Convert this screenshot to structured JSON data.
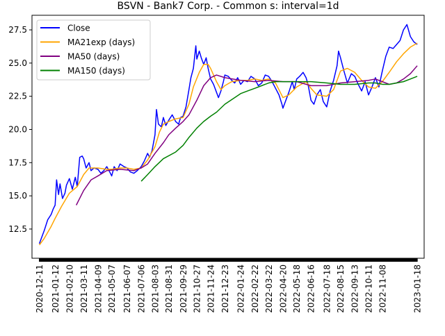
{
  "chart_data": {
    "type": "line",
    "title": "BSVN - Bank7 Corp. - Common s: interval=1d",
    "xlabel": "",
    "ylabel": "",
    "ylim": [
      10.3,
      28.6
    ],
    "xlim": [
      "2020-11-26",
      "2023-02-01"
    ],
    "grid": false,
    "legend_position": "top-left",
    "y_ticks": [
      "12.5",
      "15.0",
      "17.5",
      "20.0",
      "22.5",
      "25.0",
      "27.5"
    ],
    "x_ticks": [
      "2020-12-11",
      "2021-01-12",
      "2021-02-10",
      "2021-03-11",
      "2021-04-09",
      "2021-05-07",
      "2021-06-07",
      "2021-07-06",
      "2021-08-03",
      "2021-08-31",
      "2021-09-29",
      "2021-10-27",
      "2021-11-24",
      "2021-12-23",
      "2022-01-24",
      "2022-02-22",
      "2022-03-22",
      "2022-04-20",
      "2022-05-18",
      "2022-06-16",
      "2022-07-18",
      "2022-08-15",
      "2022-09-13",
      "2022-10-11",
      "2022-11-08",
      "2023-01-18"
    ],
    "series": [
      {
        "name": "Close",
        "color": "#0000ff",
        "points": [
          [
            "2020-12-11",
            11.4
          ],
          [
            "2020-12-16",
            11.9
          ],
          [
            "2020-12-21",
            12.4
          ],
          [
            "2020-12-28",
            13.2
          ],
          [
            "2021-01-04",
            13.6
          ],
          [
            "2021-01-08",
            14.0
          ],
          [
            "2021-01-12",
            14.3
          ],
          [
            "2021-01-15",
            16.2
          ],
          [
            "2021-01-19",
            15.1
          ],
          [
            "2021-01-22",
            15.9
          ],
          [
            "2021-01-27",
            14.8
          ],
          [
            "2021-02-01",
            15.2
          ],
          [
            "2021-02-04",
            15.8
          ],
          [
            "2021-02-10",
            16.3
          ],
          [
            "2021-02-16",
            15.5
          ],
          [
            "2021-02-22",
            16.4
          ],
          [
            "2021-02-26",
            15.7
          ],
          [
            "2021-03-03",
            17.9
          ],
          [
            "2021-03-08",
            18.0
          ],
          [
            "2021-03-11",
            17.8
          ],
          [
            "2021-03-16",
            17.1
          ],
          [
            "2021-03-22",
            17.5
          ],
          [
            "2021-03-26",
            16.9
          ],
          [
            "2021-04-01",
            17.1
          ],
          [
            "2021-04-09",
            17.0
          ],
          [
            "2021-04-15",
            16.7
          ],
          [
            "2021-04-21",
            16.9
          ],
          [
            "2021-04-27",
            17.2
          ],
          [
            "2021-05-03",
            16.8
          ],
          [
            "2021-05-07",
            16.5
          ],
          [
            "2021-05-12",
            17.2
          ],
          [
            "2021-05-18",
            16.9
          ],
          [
            "2021-05-24",
            17.4
          ],
          [
            "2021-06-01",
            17.2
          ],
          [
            "2021-06-07",
            17.1
          ],
          [
            "2021-06-14",
            16.8
          ],
          [
            "2021-06-21",
            16.7
          ],
          [
            "2021-06-28",
            16.9
          ],
          [
            "2021-07-06",
            17.2
          ],
          [
            "2021-07-12",
            17.6
          ],
          [
            "2021-07-19",
            18.2
          ],
          [
            "2021-07-23",
            17.9
          ],
          [
            "2021-07-28",
            18.4
          ],
          [
            "2021-08-03",
            19.6
          ],
          [
            "2021-08-06",
            21.5
          ],
          [
            "2021-08-10",
            20.4
          ],
          [
            "2021-08-16",
            20.2
          ],
          [
            "2021-08-20",
            20.9
          ],
          [
            "2021-08-25",
            20.3
          ],
          [
            "2021-08-31",
            20.7
          ],
          [
            "2021-09-07",
            21.1
          ],
          [
            "2021-09-14",
            20.6
          ],
          [
            "2021-09-20",
            20.4
          ],
          [
            "2021-09-24",
            20.9
          ],
          [
            "2021-09-29",
            21.0
          ],
          [
            "2021-10-05",
            21.7
          ],
          [
            "2021-10-11",
            23.0
          ],
          [
            "2021-10-15",
            23.9
          ],
          [
            "2021-10-20",
            24.6
          ],
          [
            "2021-10-25",
            26.3
          ],
          [
            "2021-10-27",
            25.3
          ],
          [
            "2021-11-01",
            25.9
          ],
          [
            "2021-11-05",
            25.4
          ],
          [
            "2021-11-10",
            24.9
          ],
          [
            "2021-11-15",
            25.4
          ],
          [
            "2021-11-19",
            24.6
          ],
          [
            "2021-11-24",
            23.8
          ],
          [
            "2021-11-30",
            23.4
          ],
          [
            "2021-12-06",
            22.8
          ],
          [
            "2021-12-10",
            22.4
          ],
          [
            "2021-12-15",
            22.9
          ],
          [
            "2021-12-20",
            23.6
          ],
          [
            "2021-12-23",
            24.1
          ],
          [
            "2021-12-30",
            24.0
          ],
          [
            "2022-01-06",
            23.7
          ],
          [
            "2022-01-12",
            23.5
          ],
          [
            "2022-01-18",
            23.9
          ],
          [
            "2022-01-24",
            23.4
          ],
          [
            "2022-01-31",
            23.7
          ],
          [
            "2022-02-07",
            23.6
          ],
          [
            "2022-02-14",
            24.0
          ],
          [
            "2022-02-22",
            23.8
          ],
          [
            "2022-03-01",
            23.3
          ],
          [
            "2022-03-08",
            23.5
          ],
          [
            "2022-03-15",
            24.1
          ],
          [
            "2022-03-22",
            24.0
          ],
          [
            "2022-03-29",
            23.6
          ],
          [
            "2022-04-05",
            23.1
          ],
          [
            "2022-04-12",
            22.6
          ],
          [
            "2022-04-18",
            21.9
          ],
          [
            "2022-04-20",
            21.6
          ],
          [
            "2022-04-26",
            22.2
          ],
          [
            "2022-05-02",
            22.8
          ],
          [
            "2022-05-09",
            23.6
          ],
          [
            "2022-05-13",
            23.0
          ],
          [
            "2022-05-18",
            23.8
          ],
          [
            "2022-05-24",
            24.0
          ],
          [
            "2022-05-31",
            24.3
          ],
          [
            "2022-06-06",
            23.9
          ],
          [
            "2022-06-10",
            23.4
          ],
          [
            "2022-06-16",
            22.2
          ],
          [
            "2022-06-22",
            21.9
          ],
          [
            "2022-06-28",
            22.6
          ],
          [
            "2022-07-05",
            23.0
          ],
          [
            "2022-07-11",
            22.1
          ],
          [
            "2022-07-18",
            21.7
          ],
          [
            "2022-07-25",
            22.9
          ],
          [
            "2022-08-01",
            23.7
          ],
          [
            "2022-08-08",
            24.8
          ],
          [
            "2022-08-11",
            25.9
          ],
          [
            "2022-08-15",
            25.4
          ],
          [
            "2022-08-22",
            24.4
          ],
          [
            "2022-08-29",
            23.5
          ],
          [
            "2022-09-06",
            24.2
          ],
          [
            "2022-09-13",
            24.0
          ],
          [
            "2022-09-20",
            23.4
          ],
          [
            "2022-09-27",
            22.9
          ],
          [
            "2022-10-04",
            23.6
          ],
          [
            "2022-10-11",
            22.6
          ],
          [
            "2022-10-18",
            23.2
          ],
          [
            "2022-10-25",
            23.9
          ],
          [
            "2022-11-01",
            23.2
          ],
          [
            "2022-11-08",
            24.4
          ],
          [
            "2022-11-15",
            25.5
          ],
          [
            "2022-11-22",
            26.2
          ],
          [
            "2022-11-30",
            26.1
          ],
          [
            "2022-12-07",
            26.4
          ],
          [
            "2022-12-14",
            26.7
          ],
          [
            "2022-12-21",
            27.5
          ],
          [
            "2022-12-28",
            27.9
          ],
          [
            "2023-01-04",
            27.0
          ],
          [
            "2023-01-11",
            26.6
          ],
          [
            "2023-01-18",
            26.4
          ]
        ]
      },
      {
        "name": "MA21exp (days)",
        "color": "#ffa500",
        "points": [
          [
            "2020-12-11",
            11.3
          ],
          [
            "2020-12-21",
            11.8
          ],
          [
            "2021-01-04",
            12.7
          ],
          [
            "2021-01-12",
            13.3
          ],
          [
            "2021-01-25",
            14.2
          ],
          [
            "2021-02-10",
            15.2
          ],
          [
            "2021-02-26",
            15.7
          ],
          [
            "2021-03-11",
            16.6
          ],
          [
            "2021-03-22",
            17.1
          ],
          [
            "2021-04-09",
            17.1
          ],
          [
            "2021-04-27",
            17.0
          ],
          [
            "2021-05-07",
            17.0
          ],
          [
            "2021-05-24",
            17.1
          ],
          [
            "2021-06-07",
            17.1
          ],
          [
            "2021-06-21",
            17.0
          ],
          [
            "2021-07-06",
            17.1
          ],
          [
            "2021-07-19",
            17.7
          ],
          [
            "2021-08-03",
            18.7
          ],
          [
            "2021-08-12",
            19.8
          ],
          [
            "2021-08-20",
            20.4
          ],
          [
            "2021-08-31",
            20.6
          ],
          [
            "2021-09-14",
            20.8
          ],
          [
            "2021-09-29",
            20.9
          ],
          [
            "2021-10-11",
            21.9
          ],
          [
            "2021-10-20",
            23.2
          ],
          [
            "2021-11-01",
            24.3
          ],
          [
            "2021-11-10",
            24.9
          ],
          [
            "2021-11-19",
            24.9
          ],
          [
            "2021-11-24",
            24.6
          ],
          [
            "2021-12-06",
            23.6
          ],
          [
            "2021-12-15",
            23.0
          ],
          [
            "2021-12-23",
            23.3
          ],
          [
            "2022-01-06",
            23.6
          ],
          [
            "2022-01-24",
            23.7
          ],
          [
            "2022-02-07",
            23.7
          ],
          [
            "2022-02-22",
            23.8
          ],
          [
            "2022-03-08",
            23.7
          ],
          [
            "2022-03-22",
            23.8
          ],
          [
            "2022-04-05",
            23.5
          ],
          [
            "2022-04-20",
            22.4
          ],
          [
            "2022-05-02",
            22.6
          ],
          [
            "2022-05-18",
            23.2
          ],
          [
            "2022-06-06",
            23.6
          ],
          [
            "2022-06-16",
            23.1
          ],
          [
            "2022-06-28",
            22.6
          ],
          [
            "2022-07-18",
            22.5
          ],
          [
            "2022-08-01",
            23.0
          ],
          [
            "2022-08-15",
            24.4
          ],
          [
            "2022-08-29",
            24.6
          ],
          [
            "2022-09-13",
            24.3
          ],
          [
            "2022-09-27",
            23.7
          ],
          [
            "2022-10-11",
            23.2
          ],
          [
            "2022-10-25",
            23.1
          ],
          [
            "2022-11-08",
            23.6
          ],
          [
            "2022-11-22",
            24.3
          ],
          [
            "2022-12-07",
            25.1
          ],
          [
            "2022-12-21",
            25.7
          ],
          [
            "2023-01-04",
            26.2
          ],
          [
            "2023-01-18",
            26.5
          ]
        ]
      },
      {
        "name": "MA50 (days)",
        "color": "#800080",
        "points": [
          [
            "2021-02-24",
            14.3
          ],
          [
            "2021-03-11",
            15.4
          ],
          [
            "2021-03-26",
            16.2
          ],
          [
            "2021-04-09",
            16.5
          ],
          [
            "2021-04-27",
            16.9
          ],
          [
            "2021-05-24",
            17.0
          ],
          [
            "2021-06-21",
            16.9
          ],
          [
            "2021-07-06",
            17.1
          ],
          [
            "2021-07-19",
            17.4
          ],
          [
            "2021-08-03",
            18.2
          ],
          [
            "2021-08-20",
            19.0
          ],
          [
            "2021-08-31",
            19.6
          ],
          [
            "2021-09-14",
            20.1
          ],
          [
            "2021-09-29",
            20.6
          ],
          [
            "2021-10-11",
            21.1
          ],
          [
            "2021-10-27",
            22.2
          ],
          [
            "2021-11-10",
            23.3
          ],
          [
            "2021-11-24",
            23.9
          ],
          [
            "2021-12-06",
            24.1
          ],
          [
            "2021-12-23",
            23.9
          ],
          [
            "2022-01-24",
            23.7
          ],
          [
            "2022-02-22",
            23.6
          ],
          [
            "2022-03-22",
            23.7
          ],
          [
            "2022-04-20",
            23.6
          ],
          [
            "2022-05-18",
            23.6
          ],
          [
            "2022-06-16",
            23.3
          ],
          [
            "2022-07-18",
            23.3
          ],
          [
            "2022-08-15",
            23.5
          ],
          [
            "2022-09-13",
            23.6
          ],
          [
            "2022-10-11",
            23.7
          ],
          [
            "2022-10-25",
            23.8
          ],
          [
            "2022-11-08",
            23.6
          ],
          [
            "2022-11-22",
            23.4
          ],
          [
            "2022-12-07",
            23.5
          ],
          [
            "2022-12-21",
            23.8
          ],
          [
            "2023-01-04",
            24.2
          ],
          [
            "2023-01-18",
            24.8
          ]
        ]
      },
      {
        "name": "MA150 (days)",
        "color": "#008000",
        "points": [
          [
            "2021-07-06",
            16.1
          ],
          [
            "2021-07-19",
            16.6
          ],
          [
            "2021-08-03",
            17.2
          ],
          [
            "2021-08-20",
            17.8
          ],
          [
            "2021-09-14",
            18.3
          ],
          [
            "2021-09-29",
            18.8
          ],
          [
            "2021-10-11",
            19.4
          ],
          [
            "2021-10-27",
            20.1
          ],
          [
            "2021-11-10",
            20.6
          ],
          [
            "2021-11-24",
            21.0
          ],
          [
            "2021-12-06",
            21.3
          ],
          [
            "2021-12-23",
            21.9
          ],
          [
            "2022-01-12",
            22.4
          ],
          [
            "2022-01-24",
            22.7
          ],
          [
            "2022-02-07",
            22.9
          ],
          [
            "2022-02-22",
            23.1
          ],
          [
            "2022-03-08",
            23.3
          ],
          [
            "2022-03-22",
            23.5
          ],
          [
            "2022-04-05",
            23.6
          ],
          [
            "2022-04-20",
            23.6
          ],
          [
            "2022-05-18",
            23.6
          ],
          [
            "2022-06-16",
            23.6
          ],
          [
            "2022-07-18",
            23.5
          ],
          [
            "2022-08-15",
            23.4
          ],
          [
            "2022-09-13",
            23.4
          ],
          [
            "2022-10-11",
            23.5
          ],
          [
            "2022-10-25",
            23.5
          ],
          [
            "2022-11-08",
            23.4
          ],
          [
            "2022-11-22",
            23.4
          ],
          [
            "2022-12-07",
            23.5
          ],
          [
            "2022-12-21",
            23.6
          ],
          [
            "2023-01-04",
            23.8
          ],
          [
            "2023-01-18",
            24.0
          ]
        ]
      }
    ]
  }
}
